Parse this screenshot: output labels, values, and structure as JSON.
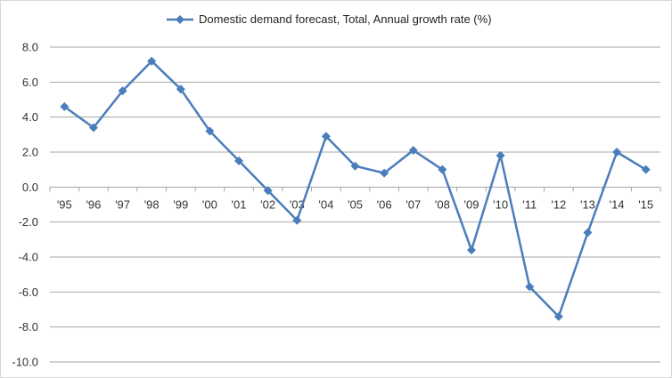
{
  "chart_data": {
    "type": "line",
    "legend": {
      "position": "top",
      "label": "Domestic demand forecast, Total, Annual growth rate (%)"
    },
    "categories": [
      "'95",
      "'96",
      "'97",
      "'98",
      "'99",
      "'00",
      "'01",
      "'02",
      "'03",
      "'04",
      "'05",
      "'06",
      "'07",
      "'08",
      "'09",
      "'10",
      "'11",
      "'12",
      "'13",
      "'14",
      "'15"
    ],
    "series": [
      {
        "name": "Domestic demand forecast, Total, Annual growth rate (%)",
        "color": "#4a7ebb",
        "marker": "diamond",
        "values": [
          4.6,
          3.4,
          5.5,
          7.2,
          5.6,
          3.2,
          1.5,
          -0.2,
          -1.9,
          2.9,
          1.2,
          0.8,
          2.1,
          1.0,
          -3.6,
          1.8,
          -5.7,
          -7.4,
          -2.6,
          2.0,
          1.0
        ]
      }
    ],
    "ylim": [
      -10,
      8
    ],
    "yticks": [
      "8.0",
      "6.0",
      "4.0",
      "2.0",
      "0.0",
      "-2.0",
      "-4.0",
      "-6.0",
      "-8.0",
      "-10.0"
    ],
    "grid": true,
    "gridColor": "#a6a6a6"
  }
}
